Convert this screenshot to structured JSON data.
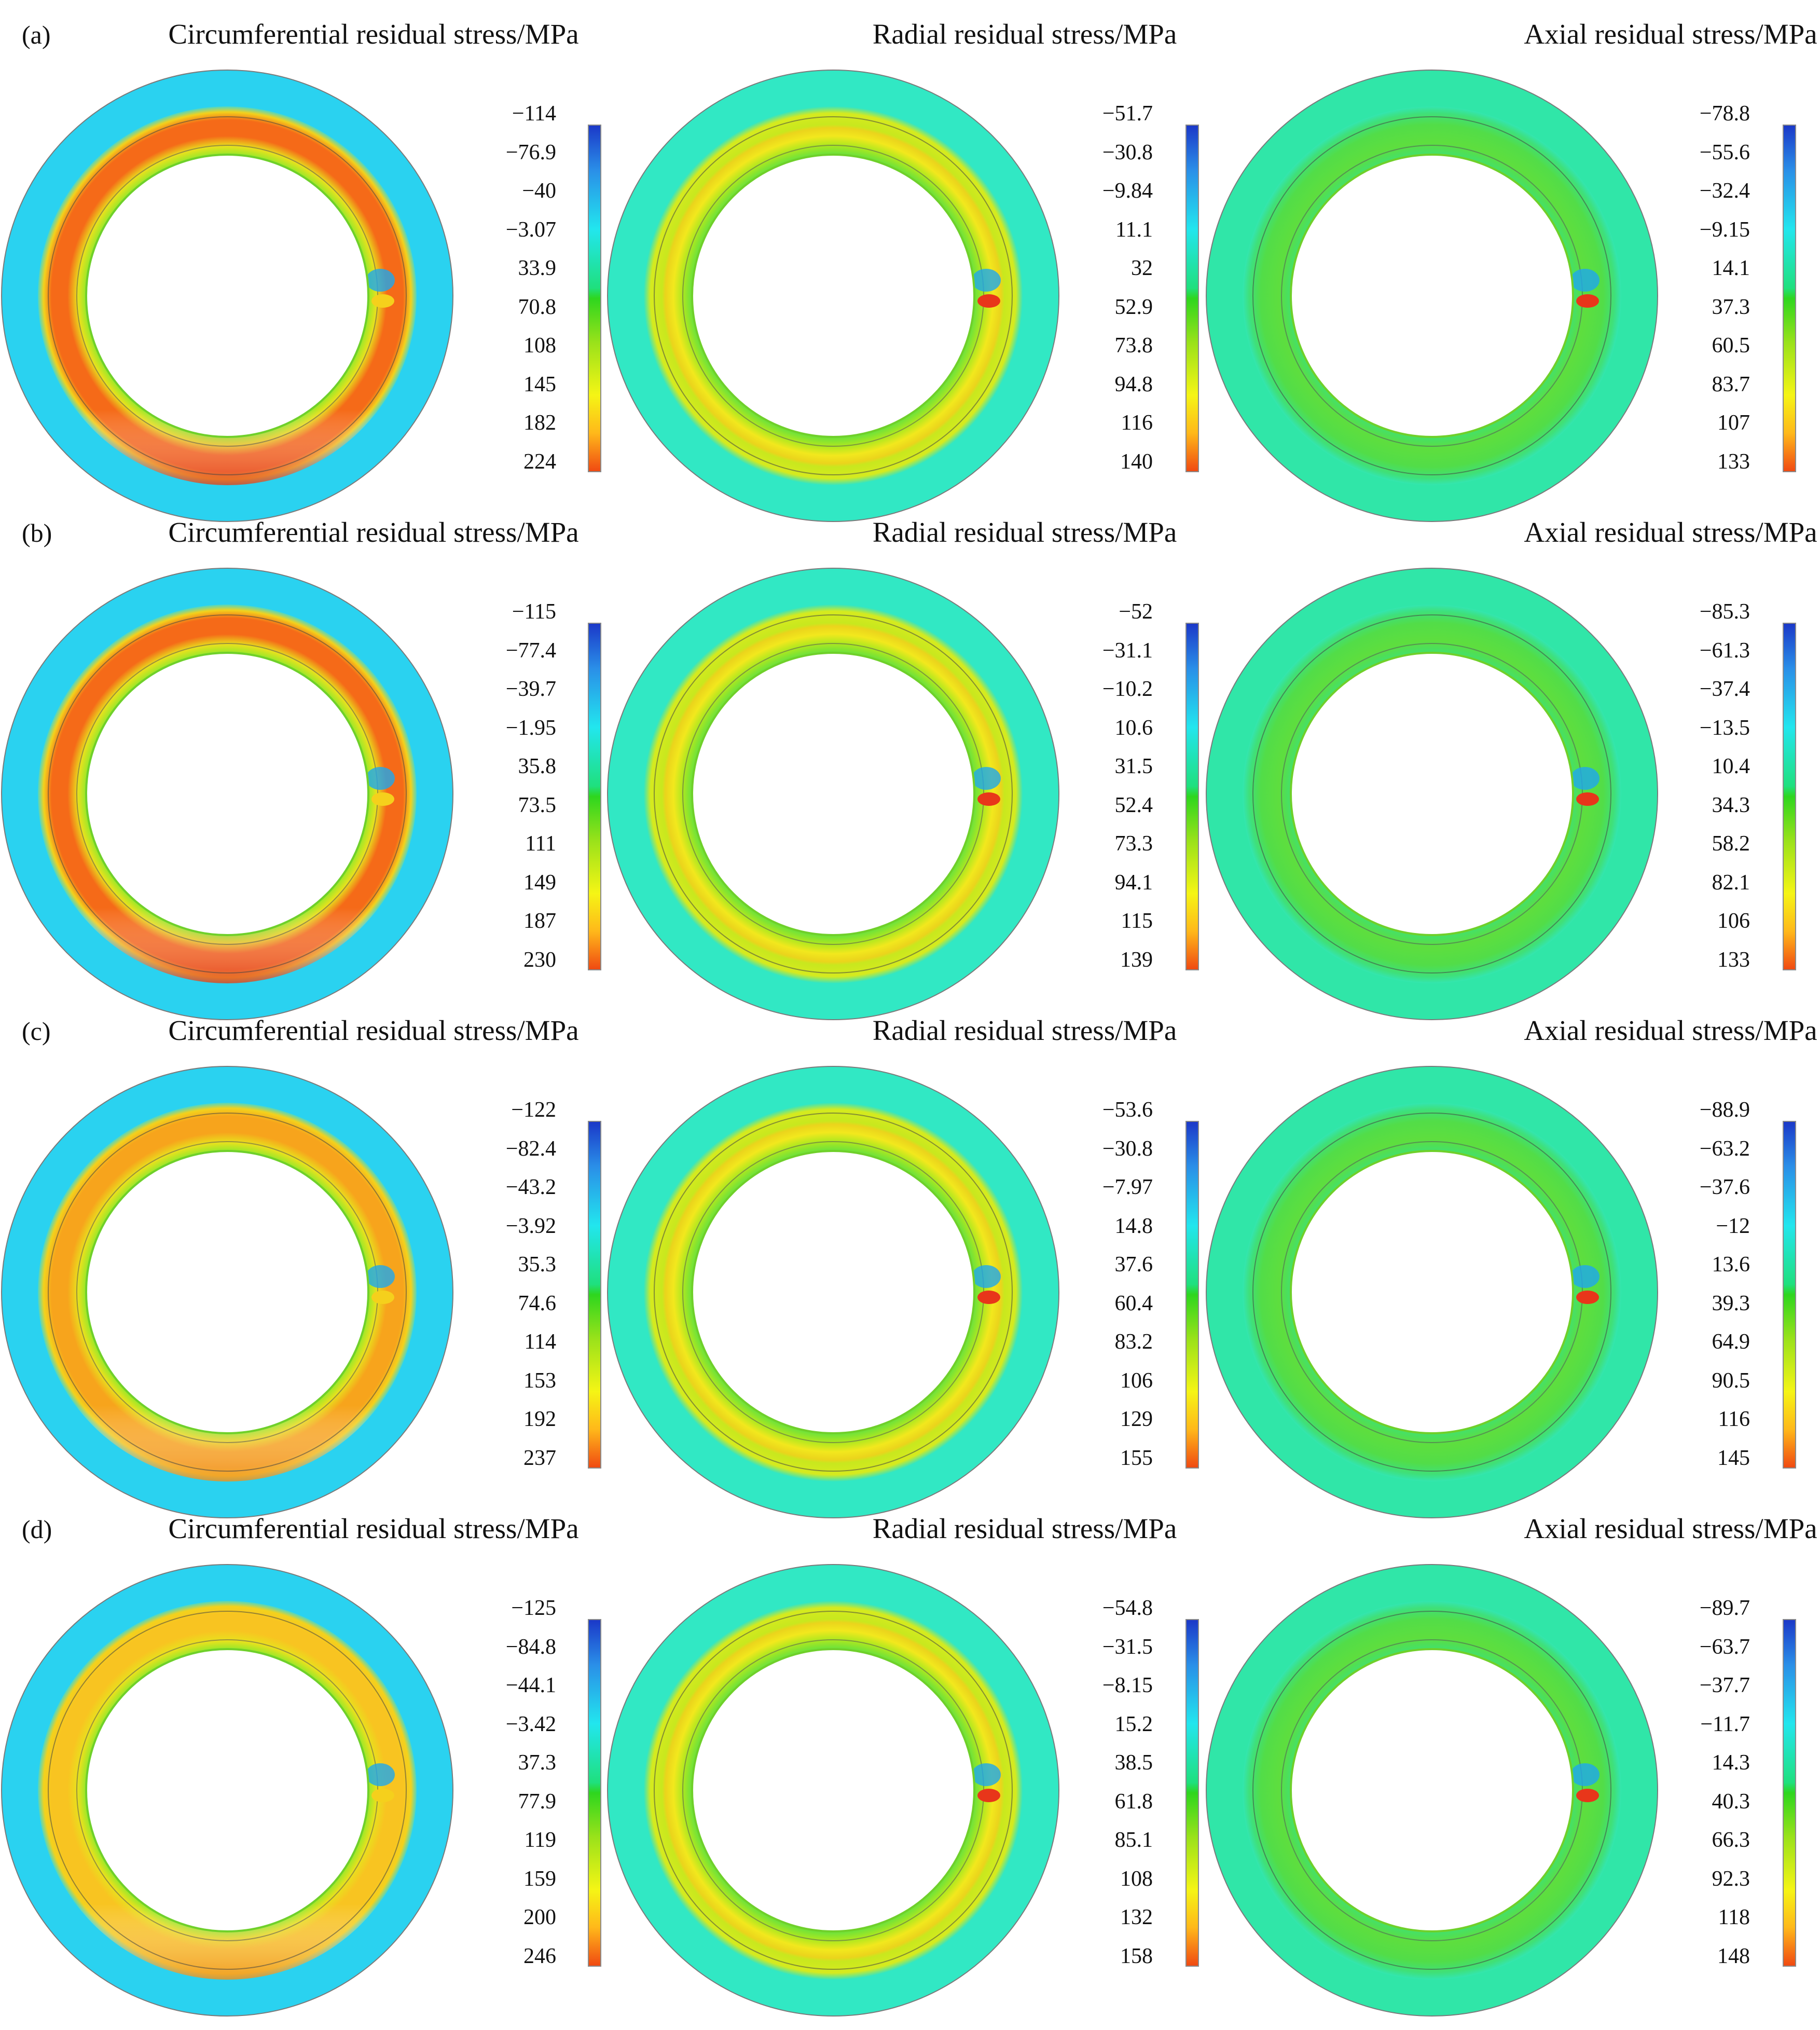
{
  "rows": [
    {
      "label": "(a)",
      "panels": [
        {
          "title": "Circumferential residual stress/MPa",
          "ticks": [
            "−114",
            "−76.9",
            "−40",
            "−3.07",
            "33.9",
            "70.8",
            "108",
            "145",
            "182",
            "224"
          ]
        },
        {
          "title": "Radial residual stress/MPa",
          "ticks": [
            "−51.7",
            "−30.8",
            "−9.84",
            "11.1",
            "32",
            "52.9",
            "73.8",
            "94.8",
            "116",
            "140"
          ]
        },
        {
          "title": "Axial residual stress/MPa",
          "ticks": [
            "−78.8",
            "−55.6",
            "−32.4",
            "−9.15",
            "14.1",
            "37.3",
            "60.5",
            "83.7",
            "107",
            "133"
          ]
        }
      ]
    },
    {
      "label": "(b)",
      "panels": [
        {
          "title": "Circumferential residual stress/MPa",
          "ticks": [
            "−115",
            "−77.4",
            "−39.7",
            "−1.95",
            "35.8",
            "73.5",
            "111",
            "149",
            "187",
            "230"
          ]
        },
        {
          "title": "Radial residual stress/MPa",
          "ticks": [
            "−52",
            "−31.1",
            "−10.2",
            "10.6",
            "31.5",
            "52.4",
            "73.3",
            "94.1",
            "115",
            "139"
          ]
        },
        {
          "title": "Axial residual stress/MPa",
          "ticks": [
            "−85.3",
            "−61.3",
            "−37.4",
            "−13.5",
            "10.4",
            "34.3",
            "58.2",
            "82.1",
            "106",
            "133"
          ]
        }
      ]
    },
    {
      "label": "(c)",
      "panels": [
        {
          "title": "Circumferential residual stress/MPa",
          "ticks": [
            "−122",
            "−82.4",
            "−43.2",
            "−3.92",
            "35.3",
            "74.6",
            "114",
            "153",
            "192",
            "237"
          ]
        },
        {
          "title": "Radial residual stress/MPa",
          "ticks": [
            "−53.6",
            "−30.8",
            "−7.97",
            "14.8",
            "37.6",
            "60.4",
            "83.2",
            "106",
            "129",
            "155"
          ]
        },
        {
          "title": "Axial residual stress/MPa",
          "ticks": [
            "−88.9",
            "−63.2",
            "−37.6",
            "−12",
            "13.6",
            "39.3",
            "64.9",
            "90.5",
            "116",
            "145"
          ]
        }
      ]
    },
    {
      "label": "(d)",
      "panels": [
        {
          "title": "Circumferential residual stress/MPa",
          "ticks": [
            "−125",
            "−84.8",
            "−44.1",
            "−3.42",
            "37.3",
            "77.9",
            "119",
            "159",
            "200",
            "246"
          ]
        },
        {
          "title": "Radial residual stress/MPa",
          "ticks": [
            "−54.8",
            "−31.5",
            "−8.15",
            "15.2",
            "38.5",
            "61.8",
            "85.1",
            "108",
            "132",
            "158"
          ]
        },
        {
          "title": "Axial residual stress/MPa",
          "ticks": [
            "−89.7",
            "−63.7",
            "−37.7",
            "−11.7",
            "14.3",
            "40.3",
            "66.3",
            "92.3",
            "118",
            "148"
          ]
        }
      ]
    }
  ],
  "colormap": {
    "low": "#1b38c8",
    "mid": "#2ed61e",
    "high": "#f04a12"
  }
}
